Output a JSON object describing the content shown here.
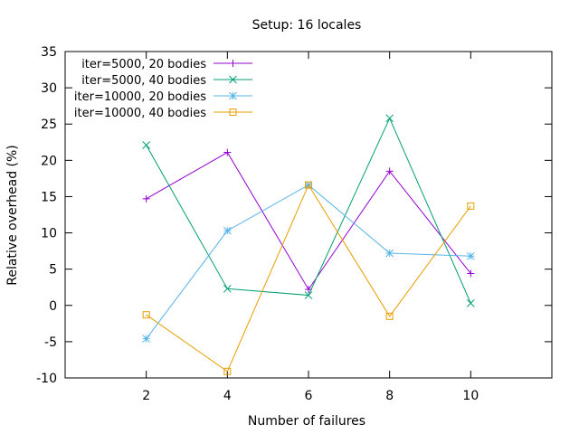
{
  "chart_data": {
    "type": "line",
    "title": "Setup: 16 locales",
    "xlabel": "Number of failures",
    "ylabel": "Relative overhead (%)",
    "xlim": [
      0,
      12
    ],
    "ylim": [
      -10,
      35
    ],
    "x_ticks": [
      2,
      4,
      6,
      8,
      10
    ],
    "y_ticks": [
      -10,
      -5,
      0,
      5,
      10,
      15,
      20,
      25,
      30,
      35
    ],
    "grid": false,
    "legend_position": "top-left",
    "x": [
      2,
      4,
      6,
      8,
      10
    ],
    "series": [
      {
        "name": "iter=5000, 20 bodies",
        "color": "#9400d3",
        "marker": "plus",
        "values": [
          14.7,
          21.1,
          2.2,
          18.5,
          4.4
        ]
      },
      {
        "name": "iter=5000, 40 bodies",
        "color": "#009e73",
        "marker": "cross",
        "values": [
          22.1,
          2.3,
          1.4,
          25.8,
          0.3
        ]
      },
      {
        "name": "iter=10000, 20 bodies",
        "color": "#56b4e9",
        "marker": "star",
        "values": [
          -4.6,
          10.3,
          16.6,
          7.2,
          6.8
        ]
      },
      {
        "name": "iter=10000, 40 bodies",
        "color": "#e69f00",
        "marker": "square",
        "values": [
          -1.3,
          -9.1,
          16.6,
          -1.5,
          13.7
        ]
      }
    ]
  }
}
